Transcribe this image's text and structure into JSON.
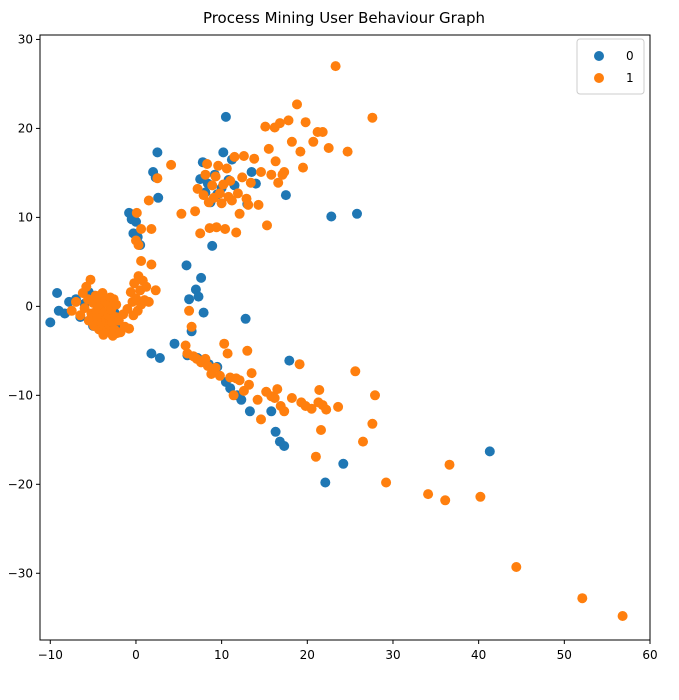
{
  "chart_data": {
    "type": "scatter",
    "title": "Process Mining User Behaviour Graph",
    "xlabel": "",
    "ylabel": "",
    "xlim": [
      -11.2,
      60
    ],
    "ylim": [
      -37.5,
      30.5
    ],
    "xticks": [
      -10,
      0,
      10,
      20,
      30,
      40,
      50,
      60
    ],
    "yticks": [
      -30,
      -20,
      -10,
      0,
      10,
      20,
      30
    ],
    "legend_position": "top-right",
    "grid": false,
    "series": [
      {
        "name": "0",
        "color": "#1f77b4",
        "points": [
          [
            -10,
            -1.8
          ],
          [
            -9.2,
            1.5
          ],
          [
            -9,
            -0.5
          ],
          [
            -8.3,
            -0.8
          ],
          [
            -7.8,
            0.5
          ],
          [
            -7,
            0.8
          ],
          [
            -6.5,
            -1.2
          ],
          [
            -6,
            0.3
          ],
          [
            -5.5,
            1.6
          ],
          [
            -5,
            -2.2
          ],
          [
            -4.8,
            1.2
          ],
          [
            -4.2,
            0.1
          ],
          [
            -3.8,
            -1.5
          ],
          [
            -3.2,
            0.9
          ],
          [
            -2.5,
            -0.7
          ],
          [
            -2,
            -2.5
          ],
          [
            -0.8,
            10.5
          ],
          [
            -0.5,
            9.8
          ],
          [
            -0.3,
            8.2
          ],
          [
            0,
            9.5
          ],
          [
            0.2,
            7.8
          ],
          [
            0.5,
            6.9
          ],
          [
            2,
            15.1
          ],
          [
            2.3,
            14.5
          ],
          [
            2.5,
            17.3
          ],
          [
            2.6,
            12.2
          ],
          [
            5.9,
            4.6
          ],
          [
            6.2,
            0.8
          ],
          [
            6.5,
            -2.8
          ],
          [
            7,
            1.9
          ],
          [
            7.3,
            1.1
          ],
          [
            7.6,
            3.2
          ],
          [
            7.9,
            -0.7
          ],
          [
            7.5,
            14.3
          ],
          [
            7.8,
            16.2
          ],
          [
            8.1,
            12.8
          ],
          [
            8.4,
            13.8
          ],
          [
            8.7,
            11.7
          ],
          [
            8.9,
            6.8
          ],
          [
            9.2,
            14.8
          ],
          [
            9.5,
            12.6
          ],
          [
            10,
            13.3
          ],
          [
            10.2,
            17.3
          ],
          [
            10.5,
            21.3
          ],
          [
            10.8,
            14.2
          ],
          [
            11.2,
            16.5
          ],
          [
            11.5,
            13.6
          ],
          [
            13,
            11.5
          ],
          [
            13.5,
            15.1
          ],
          [
            14,
            13.8
          ],
          [
            17.5,
            12.5
          ],
          [
            22.8,
            10.1
          ],
          [
            25.8,
            10.4
          ],
          [
            1.8,
            -5.3
          ],
          [
            2.8,
            -5.8
          ],
          [
            4.5,
            -4.2
          ],
          [
            6,
            -5.5
          ],
          [
            7.2,
            -5.8
          ],
          [
            8.5,
            -6.5
          ],
          [
            9.5,
            -6.8
          ],
          [
            10.5,
            -8.5
          ],
          [
            11,
            -9.2
          ],
          [
            11.8,
            -10
          ],
          [
            12.3,
            -10.5
          ],
          [
            12.8,
            -1.4
          ],
          [
            13.3,
            -11.8
          ],
          [
            15.8,
            -11.8
          ],
          [
            16.3,
            -14.1
          ],
          [
            16.8,
            -15.2
          ],
          [
            17.3,
            -15.7
          ],
          [
            17.9,
            -6.1
          ],
          [
            22.1,
            -19.8
          ],
          [
            24.2,
            -17.7
          ],
          [
            41.3,
            -16.3
          ]
        ]
      },
      {
        "name": "1",
        "color": "#ff7f0e",
        "points": [
          [
            -7.5,
            -0.5
          ],
          [
            -7,
            0.5
          ],
          [
            -6.5,
            -1
          ],
          [
            -6.2,
            1.5
          ],
          [
            -6,
            -0.2
          ],
          [
            -5.8,
            2.2
          ],
          [
            -5.6,
            0.8
          ],
          [
            -5.5,
            -1.6
          ],
          [
            -5.3,
            3
          ],
          [
            -5.2,
            -0.8
          ],
          [
            -5,
            0.4
          ],
          [
            -4.9,
            -2.2
          ],
          [
            -4.7,
            1.2
          ],
          [
            -4.6,
            -0.5
          ],
          [
            -4.5,
            -1.3
          ],
          [
            -4.4,
            0.9
          ],
          [
            -4.3,
            -2.6
          ],
          [
            -4.1,
            0.1
          ],
          [
            -4,
            -1.9
          ],
          [
            -3.9,
            1.5
          ],
          [
            -3.8,
            -3.2
          ],
          [
            -3.7,
            -0.7
          ],
          [
            -3.6,
            0.6
          ],
          [
            -3.5,
            -1.5
          ],
          [
            -3.4,
            -2.8
          ],
          [
            -3.3,
            0.3
          ],
          [
            -3.2,
            -1
          ],
          [
            -3.1,
            -2.1
          ],
          [
            -3,
            1
          ],
          [
            -2.9,
            -0.4
          ],
          [
            -2.8,
            -1.8
          ],
          [
            -2.7,
            -3.3
          ],
          [
            -2.6,
            0.8
          ],
          [
            -2.5,
            -2.6
          ],
          [
            -2.4,
            -1.2
          ],
          [
            -2.3,
            0.2
          ],
          [
            -2.2,
            -3
          ],
          [
            -2,
            -1.6
          ],
          [
            -1.8,
            -2.9
          ],
          [
            -1.5,
            -0.9
          ],
          [
            -1.3,
            -2.3
          ],
          [
            -1,
            -0.3
          ],
          [
            -0.8,
            -2.5
          ],
          [
            -0.6,
            1.6
          ],
          [
            -0.4,
            0.5
          ],
          [
            -0.3,
            -1
          ],
          [
            -0.2,
            2.6
          ],
          [
            0,
            0.9
          ],
          [
            0.2,
            -0.5
          ],
          [
            0.3,
            3.4
          ],
          [
            0.5,
            1.8
          ],
          [
            0.6,
            0.2
          ],
          [
            0.8,
            2.9
          ],
          [
            1,
            0.7
          ],
          [
            1.2,
            2.2
          ],
          [
            1.5,
            0.5
          ],
          [
            1.8,
            4.7
          ],
          [
            2.3,
            1.8
          ],
          [
            0.6,
            5.1
          ],
          [
            0,
            7.4
          ],
          [
            0.3,
            6.9
          ],
          [
            0.6,
            8.7
          ],
          [
            0.1,
            10.5
          ],
          [
            1.5,
            11.9
          ],
          [
            1.8,
            8.7
          ],
          [
            2.5,
            14.4
          ],
          [
            4.1,
            15.9
          ],
          [
            5.3,
            10.4
          ],
          [
            6.9,
            10.7
          ],
          [
            7.2,
            13.2
          ],
          [
            7.5,
            8.2
          ],
          [
            7.9,
            12.5
          ],
          [
            8.1,
            14.8
          ],
          [
            8.3,
            16
          ],
          [
            8.5,
            11.7
          ],
          [
            8.6,
            8.8
          ],
          [
            8.9,
            13.6
          ],
          [
            9.1,
            12.2
          ],
          [
            9.3,
            14.6
          ],
          [
            9.4,
            8.9
          ],
          [
            9.6,
            15.8
          ],
          [
            9.8,
            12.7
          ],
          [
            10,
            11.6
          ],
          [
            10.2,
            13.7
          ],
          [
            10.4,
            8.7
          ],
          [
            10.6,
            15.5
          ],
          [
            10.8,
            12.3
          ],
          [
            11,
            14.1
          ],
          [
            11.2,
            11.9
          ],
          [
            11.5,
            16.8
          ],
          [
            11.7,
            8.3
          ],
          [
            11.9,
            12.7
          ],
          [
            12.1,
            10.4
          ],
          [
            12.4,
            14.5
          ],
          [
            12.6,
            16.9
          ],
          [
            12.9,
            12.1
          ],
          [
            13.1,
            11.4
          ],
          [
            13.4,
            13.9
          ],
          [
            13.8,
            16.6
          ],
          [
            14.3,
            11.4
          ],
          [
            14.6,
            15.1
          ],
          [
            15.1,
            20.2
          ],
          [
            15.3,
            9.1
          ],
          [
            15.5,
            17.7
          ],
          [
            15.8,
            14.8
          ],
          [
            16.2,
            20.1
          ],
          [
            16.3,
            16.3
          ],
          [
            16.6,
            13.9
          ],
          [
            16.8,
            20.6
          ],
          [
            17.1,
            14.8
          ],
          [
            17.3,
            15.1
          ],
          [
            17.8,
            20.9
          ],
          [
            18.2,
            18.5
          ],
          [
            18.8,
            22.7
          ],
          [
            19.2,
            17.4
          ],
          [
            19.5,
            15.6
          ],
          [
            19.8,
            20.7
          ],
          [
            20.7,
            18.5
          ],
          [
            21.2,
            19.6
          ],
          [
            21.8,
            19.6
          ],
          [
            22.5,
            17.8
          ],
          [
            23.3,
            27
          ],
          [
            24.7,
            17.4
          ],
          [
            27.6,
            21.2
          ],
          [
            5.8,
            -4.4
          ],
          [
            6,
            -5.3
          ],
          [
            6.2,
            -0.5
          ],
          [
            6.5,
            -2.3
          ],
          [
            6.7,
            -5.6
          ],
          [
            7.1,
            -5.9
          ],
          [
            7.6,
            -6.3
          ],
          [
            8.1,
            -5.9
          ],
          [
            8.4,
            -6.7
          ],
          [
            8.8,
            -7.6
          ],
          [
            9.3,
            -6.9
          ],
          [
            9.8,
            -7.8
          ],
          [
            10.3,
            -4.2
          ],
          [
            10.7,
            -5.3
          ],
          [
            11,
            -8
          ],
          [
            11.4,
            -10
          ],
          [
            11.7,
            -8.1
          ],
          [
            12.1,
            -8.3
          ],
          [
            12.6,
            -9.5
          ],
          [
            13,
            -5
          ],
          [
            13.2,
            -8.8
          ],
          [
            13.5,
            -7.5
          ],
          [
            14.2,
            -10.5
          ],
          [
            14.6,
            -12.7
          ],
          [
            15.2,
            -9.6
          ],
          [
            15.8,
            -10.1
          ],
          [
            16.2,
            -10.3
          ],
          [
            16.5,
            -9.3
          ],
          [
            16.9,
            -11.2
          ],
          [
            17.3,
            -11.8
          ],
          [
            18.2,
            -10.3
          ],
          [
            19.1,
            -6.5
          ],
          [
            19.3,
            -10.8
          ],
          [
            19.8,
            -11.2
          ],
          [
            20.5,
            -11.5
          ],
          [
            21,
            -16.9
          ],
          [
            21.3,
            -10.8
          ],
          [
            21.4,
            -9.4
          ],
          [
            21.6,
            -13.9
          ],
          [
            21.8,
            -11.1
          ],
          [
            22.2,
            -11.6
          ],
          [
            23.6,
            -11.3
          ],
          [
            25.6,
            -7.3
          ],
          [
            26.5,
            -15.2
          ],
          [
            27.6,
            -13.2
          ],
          [
            27.9,
            -10
          ],
          [
            29.2,
            -19.8
          ],
          [
            34.1,
            -21.1
          ],
          [
            36.1,
            -21.8
          ],
          [
            36.6,
            -17.8
          ],
          [
            40.2,
            -21.4
          ],
          [
            44.4,
            -29.3
          ],
          [
            52.1,
            -32.8
          ],
          [
            56.8,
            -34.8
          ]
        ]
      }
    ]
  }
}
